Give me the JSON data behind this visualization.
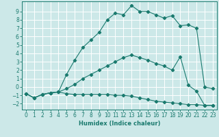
{
  "xlabel": "Humidex (Indice chaleur)",
  "bg_color": "#cce8e8",
  "grid_color": "#ffffff",
  "line_color": "#1a7a6e",
  "xlim": [
    -0.5,
    23.5
  ],
  "ylim": [
    -2.7,
    10.2
  ],
  "xticks": [
    0,
    1,
    2,
    3,
    4,
    5,
    6,
    7,
    8,
    9,
    10,
    11,
    12,
    13,
    14,
    15,
    16,
    17,
    18,
    19,
    20,
    21,
    22,
    23
  ],
  "yticks": [
    -2,
    -1,
    0,
    1,
    2,
    3,
    4,
    5,
    6,
    7,
    8,
    9
  ],
  "line1_x": [
    0,
    1,
    2,
    3,
    4,
    5,
    6,
    7,
    8,
    9,
    10,
    11,
    12,
    13,
    14,
    15,
    16,
    17,
    18,
    19,
    20,
    21,
    22,
    23
  ],
  "line1_y": [
    -0.8,
    -1.3,
    -0.9,
    -0.7,
    -0.6,
    -0.8,
    -0.9,
    -0.9,
    -0.9,
    -0.9,
    -0.9,
    -1.0,
    -1.0,
    -1.1,
    -1.3,
    -1.5,
    -1.7,
    -1.8,
    -1.9,
    -2.0,
    -2.1,
    -2.1,
    -2.2,
    -2.2
  ],
  "line2_x": [
    0,
    1,
    2,
    3,
    4,
    5,
    6,
    7,
    8,
    9,
    10,
    11,
    12,
    13,
    14,
    15,
    16,
    17,
    18,
    19,
    20,
    21,
    22,
    23
  ],
  "line2_y": [
    -0.8,
    -1.3,
    -0.9,
    -0.7,
    -0.6,
    -0.2,
    0.3,
    1.0,
    1.5,
    2.0,
    2.5,
    3.0,
    3.5,
    3.8,
    3.5,
    3.2,
    2.8,
    2.5,
    2.0,
    3.6,
    0.2,
    -0.5,
    -2.2,
    -2.2
  ],
  "line3_x": [
    0,
    1,
    2,
    3,
    4,
    5,
    6,
    7,
    8,
    9,
    10,
    11,
    12,
    13,
    14,
    15,
    16,
    17,
    18,
    19,
    20,
    21,
    22,
    23
  ],
  "line3_y": [
    -0.8,
    -1.3,
    -0.9,
    -0.7,
    -0.6,
    1.5,
    3.2,
    4.7,
    5.6,
    6.5,
    8.0,
    8.8,
    8.6,
    9.7,
    9.0,
    9.0,
    8.6,
    8.2,
    8.5,
    7.3,
    7.4,
    7.0,
    0.0,
    -0.2
  ],
  "xlabel_fontsize": 6,
  "tick_fontsize": 5.5
}
